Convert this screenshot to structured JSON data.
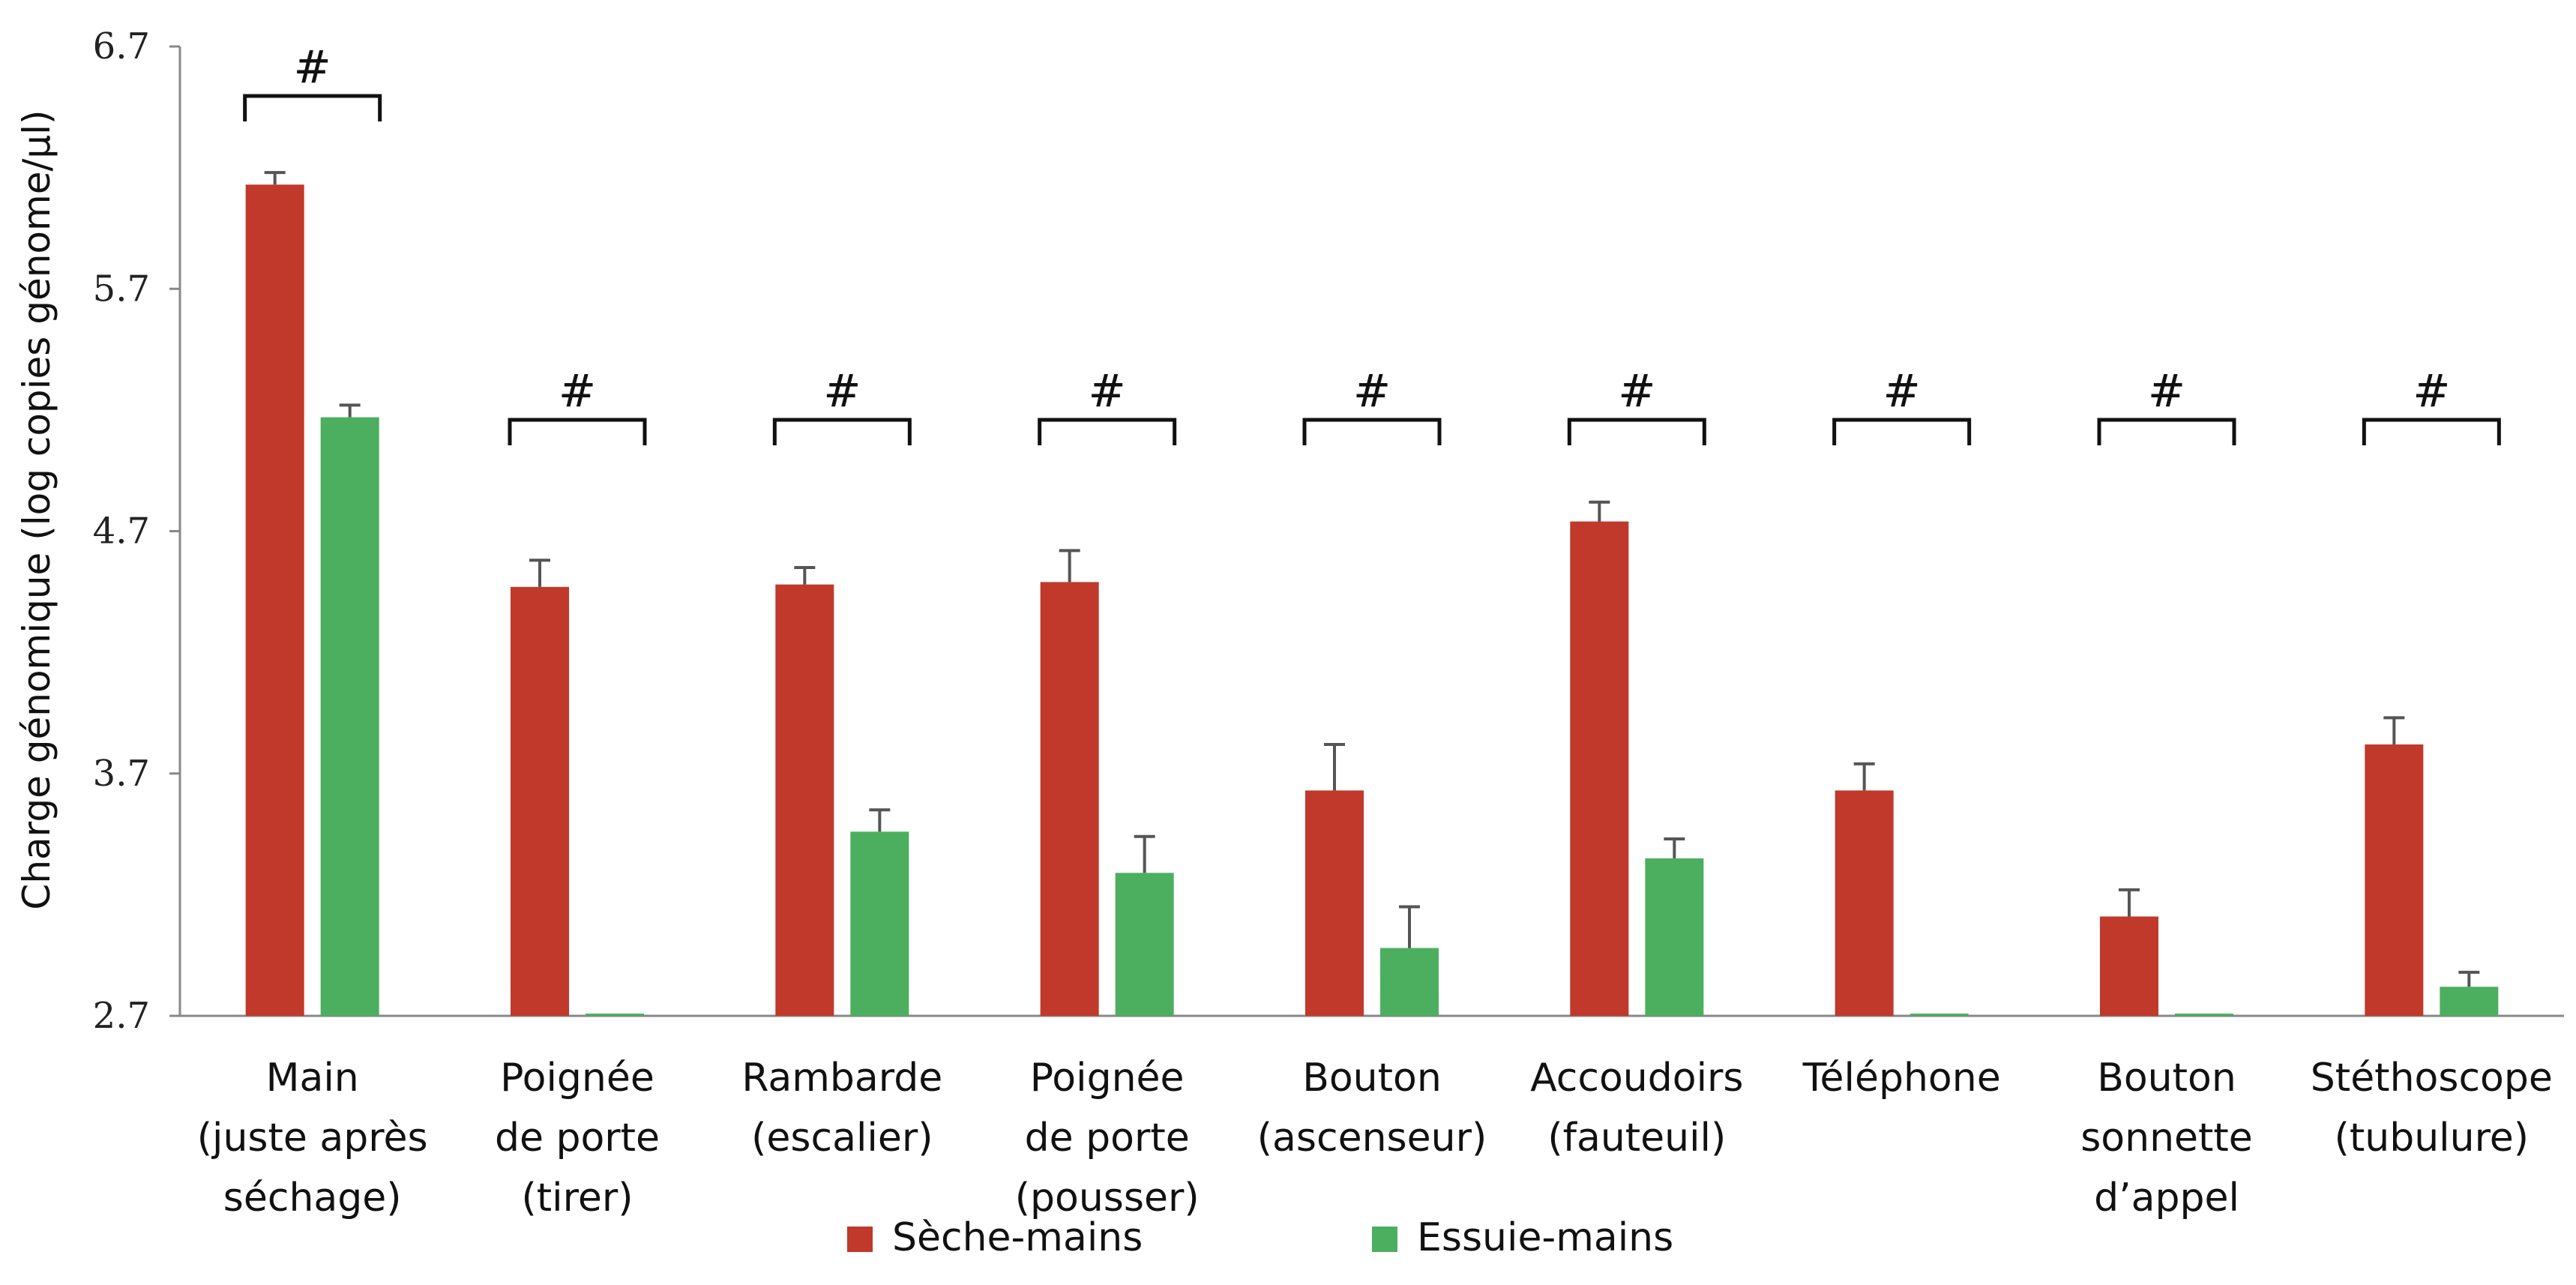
{
  "chart_data": {
    "type": "bar",
    "ylabel": "Charge génomique (log copies génome/µl)",
    "ylim": [
      2.7,
      6.7
    ],
    "yticks": [
      "6.7",
      "5.7",
      "4.7",
      "3.7",
      "2.7"
    ],
    "categories": [
      [
        "Main",
        "(juste après",
        "séchage)"
      ],
      [
        "Poignée",
        "de porte",
        "(tirer)"
      ],
      [
        "Rambarde",
        "(escalier)"
      ],
      [
        "Poignée",
        "de porte",
        "(pousser)"
      ],
      [
        "Bouton",
        "(ascenseur)"
      ],
      [
        "Accoudoirs",
        "(fauteuil)"
      ],
      [
        "Téléphone"
      ],
      [
        "Bouton",
        "sonnette",
        "d’appel"
      ],
      [
        "Stéthoscope",
        "(tubulure)"
      ]
    ],
    "series": [
      {
        "name": "Sèche-mains",
        "color": "#c0392b",
        "values": [
          6.13,
          4.47,
          4.48,
          4.49,
          3.63,
          4.74,
          3.63,
          3.11,
          3.82
        ],
        "errors": [
          0.05,
          0.11,
          0.07,
          0.13,
          0.19,
          0.08,
          0.11,
          0.11,
          0.11
        ]
      },
      {
        "name": "Essuie-mains",
        "color": "#4caf5f",
        "values": [
          5.17,
          2.7,
          3.46,
          3.29,
          2.98,
          3.35,
          2.7,
          2.7,
          2.82
        ],
        "errors": [
          0.05,
          0.0,
          0.09,
          0.15,
          0.17,
          0.08,
          0.0,
          0.0,
          0.06
        ]
      }
    ],
    "significance": [
      "#",
      "#",
      "#",
      "#",
      "#",
      "#",
      "#",
      "#",
      "#"
    ],
    "grid": false,
    "legend": "bottom"
  }
}
